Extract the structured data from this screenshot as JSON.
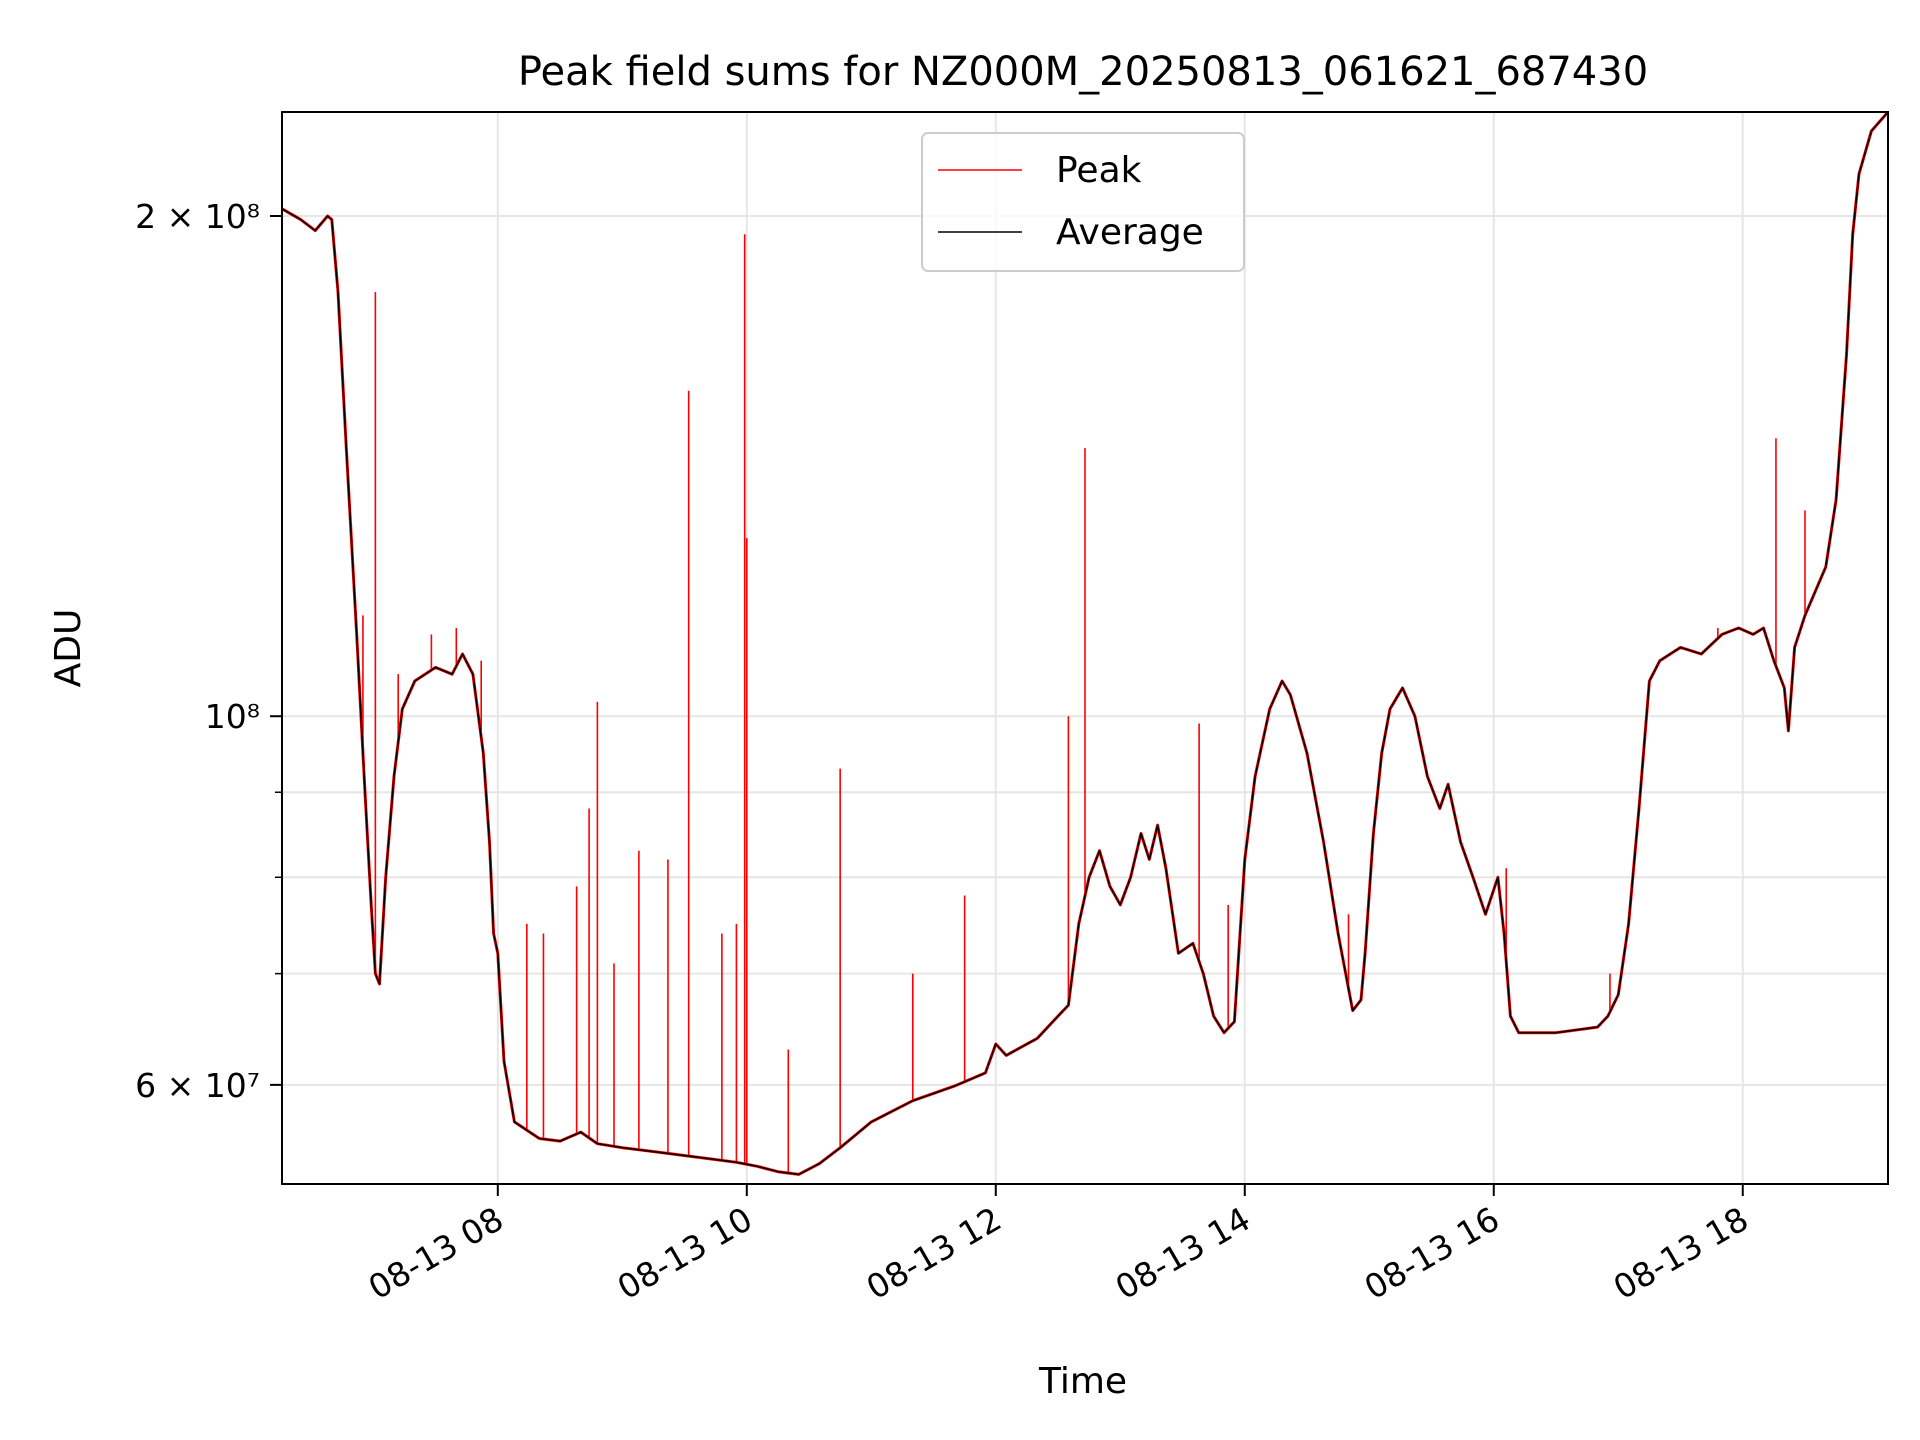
{
  "chart_data": {
    "type": "line",
    "title": "Peak field sums for NZ000M_20250813_061621_687430",
    "xlabel": "Time",
    "ylabel": "ADU",
    "yscale": "log",
    "xlim": [
      "2025-08-13 06:16",
      "2025-08-13 19:10"
    ],
    "ylim": [
      52300000,
      231000000
    ],
    "grid": true,
    "legend_position": "upper-center",
    "x_ticks": [
      {
        "label": "08-13 08",
        "value": "2025-08-13 08:00"
      },
      {
        "label": "08-13 10",
        "value": "2025-08-13 10:00"
      },
      {
        "label": "08-13 12",
        "value": "2025-08-13 12:00"
      },
      {
        "label": "08-13 14",
        "value": "2025-08-13 14:00"
      },
      {
        "label": "08-13 16",
        "value": "2025-08-13 16:00"
      },
      {
        "label": "08-13 18",
        "value": "2025-08-13 18:00"
      }
    ],
    "y_major_ticks": [
      {
        "label": "6 × 10⁷",
        "value": 60000000
      },
      {
        "label": "10⁸",
        "value": 100000000
      },
      {
        "label": "2 × 10⁸",
        "value": 200000000
      }
    ],
    "y_minor_ticks": [
      70000000,
      80000000,
      90000000
    ],
    "series": [
      {
        "name": "Average",
        "color": "#000000",
        "points": [
          [
            "2025-08-13 06:16",
            202000000
          ],
          [
            "2025-08-13 06:25",
            199000000
          ],
          [
            "2025-08-13 06:32",
            196000000
          ],
          [
            "2025-08-13 06:38",
            200000000
          ],
          [
            "2025-08-13 06:40",
            199000000
          ],
          [
            "2025-08-13 06:43",
            180000000
          ],
          [
            "2025-08-13 06:47",
            145000000
          ],
          [
            "2025-08-13 06:52",
            112000000
          ],
          [
            "2025-08-13 06:56",
            90000000
          ],
          [
            "2025-08-13 06:59",
            77000000
          ],
          [
            "2025-08-13 07:01",
            70000000
          ],
          [
            "2025-08-13 07:03",
            69000000
          ],
          [
            "2025-08-13 07:06",
            80000000
          ],
          [
            "2025-08-13 07:10",
            92000000
          ],
          [
            "2025-08-13 07:14",
            101000000
          ],
          [
            "2025-08-13 07:20",
            105000000
          ],
          [
            "2025-08-13 07:30",
            107000000
          ],
          [
            "2025-08-13 07:38",
            106000000
          ],
          [
            "2025-08-13 07:43",
            109000000
          ],
          [
            "2025-08-13 07:48",
            106000000
          ],
          [
            "2025-08-13 07:53",
            95000000
          ],
          [
            "2025-08-13 07:56",
            84000000
          ],
          [
            "2025-08-13 07:58",
            74000000
          ],
          [
            "2025-08-13 08:00",
            72000000
          ],
          [
            "2025-08-13 08:03",
            62000000
          ],
          [
            "2025-08-13 08:08",
            57000000
          ],
          [
            "2025-08-13 08:20",
            55700000
          ],
          [
            "2025-08-13 08:30",
            55500000
          ],
          [
            "2025-08-13 08:40",
            56200000
          ],
          [
            "2025-08-13 08:48",
            55300000
          ],
          [
            "2025-08-13 09:00",
            55000000
          ],
          [
            "2025-08-13 09:20",
            54600000
          ],
          [
            "2025-08-13 09:40",
            54200000
          ],
          [
            "2025-08-13 09:55",
            53900000
          ],
          [
            "2025-08-13 10:05",
            53600000
          ],
          [
            "2025-08-13 10:15",
            53200000
          ],
          [
            "2025-08-13 10:25",
            53000000
          ],
          [
            "2025-08-13 10:35",
            53800000
          ],
          [
            "2025-08-13 10:45",
            55000000
          ],
          [
            "2025-08-13 11:00",
            57000000
          ],
          [
            "2025-08-13 11:20",
            58700000
          ],
          [
            "2025-08-13 11:40",
            59900000
          ],
          [
            "2025-08-13 11:55",
            61000000
          ],
          [
            "2025-08-13 12:00",
            63500000
          ],
          [
            "2025-08-13 12:05",
            62500000
          ],
          [
            "2025-08-13 12:20",
            64000000
          ],
          [
            "2025-08-13 12:30",
            66000000
          ],
          [
            "2025-08-13 12:35",
            67000000
          ],
          [
            "2025-08-13 12:40",
            75000000
          ],
          [
            "2025-08-13 12:45",
            80000000
          ],
          [
            "2025-08-13 12:50",
            83000000
          ],
          [
            "2025-08-13 12:55",
            79000000
          ],
          [
            "2025-08-13 13:00",
            77000000
          ],
          [
            "2025-08-13 13:05",
            80000000
          ],
          [
            "2025-08-13 13:10",
            85000000
          ],
          [
            "2025-08-13 13:14",
            82000000
          ],
          [
            "2025-08-13 13:18",
            86000000
          ],
          [
            "2025-08-13 13:22",
            81000000
          ],
          [
            "2025-08-13 13:28",
            72000000
          ],
          [
            "2025-08-13 13:35",
            73000000
          ],
          [
            "2025-08-13 13:40",
            70000000
          ],
          [
            "2025-08-13 13:45",
            66000000
          ],
          [
            "2025-08-13 13:50",
            64500000
          ],
          [
            "2025-08-13 13:55",
            65500000
          ],
          [
            "2025-08-13 14:00",
            82000000
          ],
          [
            "2025-08-13 14:05",
            92000000
          ],
          [
            "2025-08-13 14:12",
            101000000
          ],
          [
            "2025-08-13 14:18",
            105000000
          ],
          [
            "2025-08-13 14:22",
            103000000
          ],
          [
            "2025-08-13 14:30",
            95000000
          ],
          [
            "2025-08-13 14:38",
            84000000
          ],
          [
            "2025-08-13 14:45",
            74000000
          ],
          [
            "2025-08-13 14:52",
            66500000
          ],
          [
            "2025-08-13 14:56",
            67500000
          ],
          [
            "2025-08-13 14:58",
            72000000
          ],
          [
            "2025-08-13 15:02",
            85000000
          ],
          [
            "2025-08-13 15:06",
            95000000
          ],
          [
            "2025-08-13 15:10",
            101000000
          ],
          [
            "2025-08-13 15:16",
            104000000
          ],
          [
            "2025-08-13 15:22",
            100000000
          ],
          [
            "2025-08-13 15:28",
            92000000
          ],
          [
            "2025-08-13 15:34",
            88000000
          ],
          [
            "2025-08-13 15:38",
            91000000
          ],
          [
            "2025-08-13 15:44",
            84000000
          ],
          [
            "2025-08-13 15:50",
            80000000
          ],
          [
            "2025-08-13 15:56",
            76000000
          ],
          [
            "2025-08-13 16:02",
            80000000
          ],
          [
            "2025-08-13 16:05",
            74000000
          ],
          [
            "2025-08-13 16:08",
            66000000
          ],
          [
            "2025-08-13 16:12",
            64500000
          ],
          [
            "2025-08-13 16:30",
            64500000
          ],
          [
            "2025-08-13 16:50",
            65000000
          ],
          [
            "2025-08-13 16:55",
            66000000
          ],
          [
            "2025-08-13 17:00",
            68000000
          ],
          [
            "2025-08-13 17:05",
            75000000
          ],
          [
            "2025-08-13 17:10",
            88000000
          ],
          [
            "2025-08-13 17:15",
            105000000
          ],
          [
            "2025-08-13 17:20",
            108000000
          ],
          [
            "2025-08-13 17:30",
            110000000
          ],
          [
            "2025-08-13 17:40",
            109000000
          ],
          [
            "2025-08-13 17:50",
            112000000
          ],
          [
            "2025-08-13 17:58",
            113000000
          ],
          [
            "2025-08-13 18:05",
            112000000
          ],
          [
            "2025-08-13 18:10",
            113000000
          ],
          [
            "2025-08-13 18:15",
            108000000
          ],
          [
            "2025-08-13 18:20",
            104000000
          ],
          [
            "2025-08-13 18:22",
            98000000
          ],
          [
            "2025-08-13 18:25",
            110000000
          ],
          [
            "2025-08-13 18:30",
            115000000
          ],
          [
            "2025-08-13 18:40",
            123000000
          ],
          [
            "2025-08-13 18:45",
            135000000
          ],
          [
            "2025-08-13 18:50",
            165000000
          ],
          [
            "2025-08-13 18:53",
            195000000
          ],
          [
            "2025-08-13 18:56",
            212000000
          ],
          [
            "2025-08-13 19:02",
            225000000
          ],
          [
            "2025-08-13 19:10",
            231000000
          ]
        ]
      },
      {
        "name": "Peak",
        "color": "#ff0000",
        "spikes": [
          [
            "2025-08-13 07:01",
            180000000
          ],
          [
            "2025-08-13 06:55",
            115000000
          ],
          [
            "2025-08-13 07:12",
            106000000
          ],
          [
            "2025-08-13 07:28",
            112000000
          ],
          [
            "2025-08-13 07:40",
            113000000
          ],
          [
            "2025-08-13 07:52",
            108000000
          ],
          [
            "2025-08-13 08:14",
            75000000
          ],
          [
            "2025-08-13 08:22",
            74000000
          ],
          [
            "2025-08-13 08:38",
            79000000
          ],
          [
            "2025-08-13 08:44",
            88000000
          ],
          [
            "2025-08-13 08:48",
            102000000
          ],
          [
            "2025-08-13 08:56",
            71000000
          ],
          [
            "2025-08-13 09:08",
            83000000
          ],
          [
            "2025-08-13 09:22",
            82000000
          ],
          [
            "2025-08-13 09:32",
            157000000
          ],
          [
            "2025-08-13 09:48",
            74000000
          ],
          [
            "2025-08-13 09:55",
            75000000
          ],
          [
            "2025-08-13 09:59",
            195000000
          ],
          [
            "2025-08-13 10:00",
            128000000
          ],
          [
            "2025-08-13 10:20",
            63000000
          ],
          [
            "2025-08-13 10:45",
            93000000
          ],
          [
            "2025-08-13 11:20",
            70000000
          ],
          [
            "2025-08-13 11:45",
            78000000
          ],
          [
            "2025-08-13 12:35",
            100000000
          ],
          [
            "2025-08-13 12:43",
            145000000
          ],
          [
            "2025-08-13 13:38",
            99000000
          ],
          [
            "2025-08-13 13:52",
            77000000
          ],
          [
            "2025-08-13 14:50",
            76000000
          ],
          [
            "2025-08-13 16:06",
            81000000
          ],
          [
            "2025-08-13 16:56",
            70000000
          ],
          [
            "2025-08-13 17:48",
            113000000
          ],
          [
            "2025-08-13 18:16",
            147000000
          ],
          [
            "2025-08-13 18:30",
            133000000
          ]
        ]
      }
    ]
  }
}
